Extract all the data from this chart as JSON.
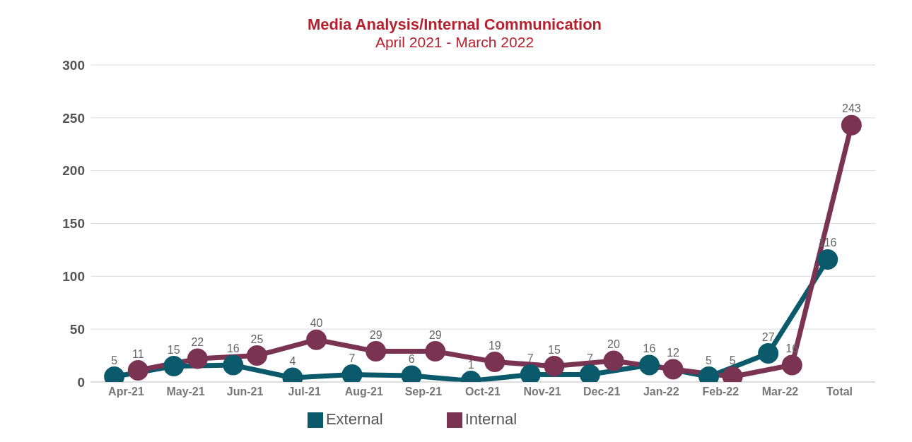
{
  "chart_data": {
    "type": "line",
    "title": "Media Analysis/Internal Communication",
    "subtitle": "April 2021 - March 2022",
    "categories": [
      "Apr-21",
      "May-21",
      "Jun-21",
      "Jul-21",
      "Aug-21",
      "Sep-21",
      "Oct-21",
      "Nov-21",
      "Dec-21",
      "Jan-22",
      "Feb-22",
      "Mar-22",
      "Total"
    ],
    "series": [
      {
        "name": "External",
        "color": "#0b5a6b",
        "values": [
          5,
          15,
          16,
          4,
          7,
          6,
          1,
          7,
          7,
          16,
          5,
          27,
          116
        ]
      },
      {
        "name": "Internal",
        "color": "#7b3352",
        "values": [
          11,
          22,
          25,
          40,
          29,
          29,
          19,
          15,
          20,
          12,
          5,
          16,
          243
        ]
      }
    ],
    "ylim": [
      0,
      300
    ],
    "yticks": [
      0,
      50,
      100,
      150,
      200,
      250,
      300
    ],
    "grid": "y",
    "legend": "bottom",
    "marker": "circle",
    "line_style": "solid",
    "data_labels": true
  }
}
